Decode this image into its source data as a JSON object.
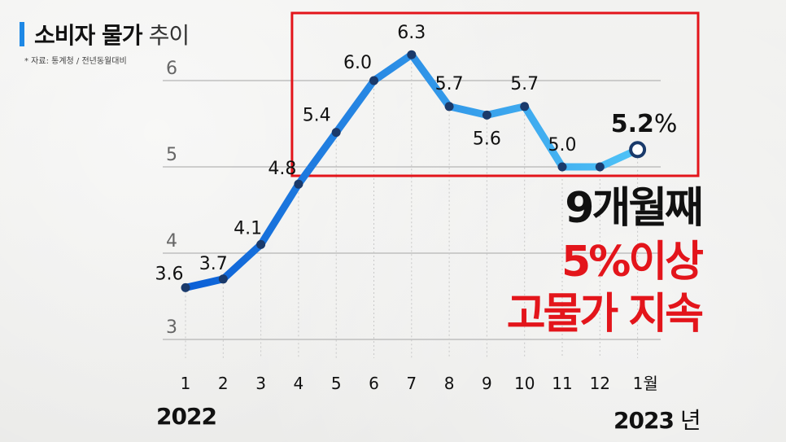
{
  "header": {
    "title_main": "소비자 물가",
    "title_sub": "추이",
    "source": "* 자료: 통계청 / 전년동월대비"
  },
  "headline": {
    "line1": "9개월째",
    "line2": "5%이상",
    "line3": "고물가 지속"
  },
  "years": {
    "start": "2022",
    "end": "2023",
    "end_suffix": "년"
  },
  "colors": {
    "line_start": "#0b5fd6",
    "line_end": "#4fc3f7",
    "highlight_box": "#e3151b",
    "dot": "#1a3a6b"
  },
  "chart_data": {
    "type": "line",
    "title": "소비자 물가 추이",
    "categories": [
      "1",
      "2",
      "3",
      "4",
      "5",
      "6",
      "7",
      "8",
      "9",
      "10",
      "11",
      "12",
      "1월"
    ],
    "values": [
      3.6,
      3.7,
      4.1,
      4.8,
      5.4,
      6.0,
      6.3,
      5.7,
      5.6,
      5.7,
      5.0,
      5.0,
      5.2
    ],
    "labels": [
      "3.6",
      "3.7",
      "4.1",
      "4.8",
      "5.4",
      "6.0",
      "6.3",
      "5.7",
      "5.6",
      "5.7",
      "5.0",
      "",
      "5.2"
    ],
    "last_label_unit": "%",
    "yticks": [
      "3",
      "4",
      "5",
      "6"
    ],
    "ylim": [
      3,
      6.3
    ],
    "grid": true,
    "highlight_range": [
      4,
      13
    ],
    "xlabel": "",
    "ylabel": ""
  }
}
